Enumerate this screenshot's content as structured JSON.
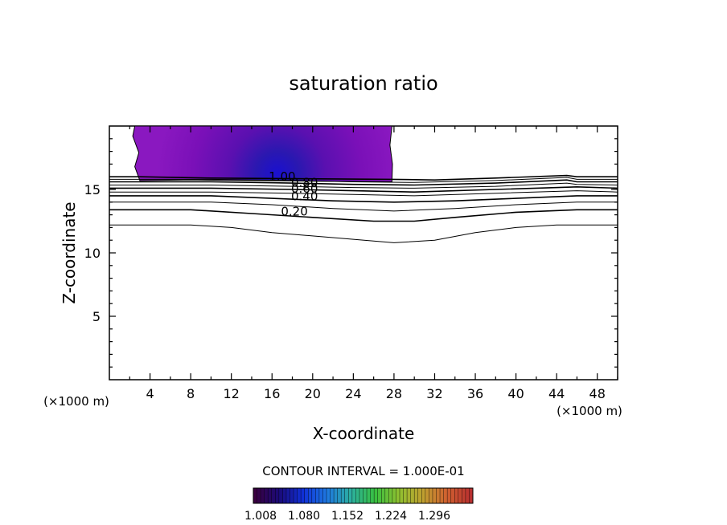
{
  "chart_data": {
    "type": "contour",
    "title": "saturation ratio",
    "xlabel": "X-coordinate",
    "ylabel": "Z-coordinate",
    "x_unit": "(×1000 m)",
    "z_unit": "(×1000 m)",
    "xlim": [
      0,
      50
    ],
    "ylim": [
      0,
      20
    ],
    "xticks": [
      4,
      8,
      12,
      16,
      20,
      24,
      28,
      32,
      36,
      40,
      44,
      48
    ],
    "yticks": [
      5,
      10,
      15
    ],
    "contour_interval_text": "CONTOUR INTERVAL = 1.000E-01",
    "filled_region": {
      "description": "supersaturated region, values above 1.0",
      "x_range": [
        2.4,
        27.8
      ],
      "z_range": [
        15.6,
        20
      ],
      "max_center": {
        "x": 18,
        "z": 16.2
      }
    },
    "contour_levels": [
      0.1,
      0.2,
      0.3,
      0.4,
      0.5,
      0.6,
      0.7,
      0.8,
      0.9,
      1.0
    ],
    "contour_labels": [
      "1.00",
      "0.80",
      "0.60",
      "0.40",
      "0.20"
    ],
    "contours": [
      {
        "level": 0.1,
        "points": [
          [
            0,
            12.2
          ],
          [
            8,
            12.2
          ],
          [
            12,
            12.0
          ],
          [
            16,
            11.6
          ],
          [
            22,
            11.2
          ],
          [
            28,
            10.8
          ],
          [
            32,
            11.0
          ],
          [
            36,
            11.6
          ],
          [
            40,
            12.0
          ],
          [
            44,
            12.2
          ],
          [
            50,
            12.2
          ]
        ]
      },
      {
        "level": 0.2,
        "points": [
          [
            0,
            13.4
          ],
          [
            8,
            13.4
          ],
          [
            14,
            13.1
          ],
          [
            20,
            12.8
          ],
          [
            26,
            12.5
          ],
          [
            30,
            12.5
          ],
          [
            34,
            12.8
          ],
          [
            40,
            13.2
          ],
          [
            46,
            13.4
          ],
          [
            50,
            13.4
          ]
        ]
      },
      {
        "level": 0.3,
        "points": [
          [
            0,
            14.0
          ],
          [
            10,
            14.0
          ],
          [
            16,
            13.8
          ],
          [
            22,
            13.5
          ],
          [
            28,
            13.3
          ],
          [
            34,
            13.5
          ],
          [
            40,
            13.8
          ],
          [
            46,
            14.0
          ],
          [
            50,
            14.0
          ]
        ]
      },
      {
        "level": 0.4,
        "points": [
          [
            0,
            14.5
          ],
          [
            10,
            14.5
          ],
          [
            16,
            14.3
          ],
          [
            22,
            14.1
          ],
          [
            28,
            14.0
          ],
          [
            34,
            14.1
          ],
          [
            40,
            14.3
          ],
          [
            46,
            14.5
          ],
          [
            50,
            14.5
          ]
        ]
      },
      {
        "level": 0.5,
        "points": [
          [
            0,
            14.8
          ],
          [
            10,
            14.8
          ],
          [
            18,
            14.7
          ],
          [
            24,
            14.6
          ],
          [
            30,
            14.5
          ],
          [
            38,
            14.7
          ],
          [
            46,
            14.9
          ],
          [
            50,
            14.8
          ]
        ]
      },
      {
        "level": 0.6,
        "points": [
          [
            0,
            15.1
          ],
          [
            10,
            15.1
          ],
          [
            18,
            15.0
          ],
          [
            24,
            14.9
          ],
          [
            30,
            14.8
          ],
          [
            38,
            15.0
          ],
          [
            46,
            15.2
          ],
          [
            50,
            15.1
          ]
        ]
      },
      {
        "level": 0.7,
        "points": [
          [
            0,
            15.35
          ],
          [
            10,
            15.35
          ],
          [
            18,
            15.25
          ],
          [
            24,
            15.15
          ],
          [
            30,
            15.1
          ],
          [
            38,
            15.25
          ],
          [
            45,
            15.5
          ],
          [
            46,
            15.4
          ],
          [
            50,
            15.35
          ]
        ]
      },
      {
        "level": 0.8,
        "points": [
          [
            0,
            15.6
          ],
          [
            10,
            15.6
          ],
          [
            18,
            15.5
          ],
          [
            24,
            15.4
          ],
          [
            30,
            15.35
          ],
          [
            38,
            15.5
          ],
          [
            45,
            15.75
          ],
          [
            46,
            15.6
          ],
          [
            50,
            15.6
          ]
        ]
      },
      {
        "level": 0.9,
        "points": [
          [
            0,
            15.8
          ],
          [
            10,
            15.8
          ],
          [
            18,
            15.7
          ],
          [
            24,
            15.6
          ],
          [
            30,
            15.55
          ],
          [
            38,
            15.7
          ],
          [
            45,
            15.95
          ],
          [
            46,
            15.8
          ],
          [
            50,
            15.8
          ]
        ]
      },
      {
        "level": 1.0,
        "points": [
          [
            0,
            16.0
          ],
          [
            3,
            16.0
          ],
          [
            10,
            15.9
          ],
          [
            18,
            15.85
          ],
          [
            27.8,
            15.8
          ],
          [
            32,
            15.75
          ],
          [
            38,
            15.9
          ],
          [
            45,
            16.1
          ],
          [
            46,
            16.0
          ],
          [
            50,
            16.0
          ]
        ]
      }
    ],
    "colorbar": {
      "labels": [
        "1.008",
        "1.080",
        "1.152",
        "1.224",
        "1.296"
      ],
      "colors": [
        "#3a0040",
        "#1a0a78",
        "#1030d8",
        "#1e78e0",
        "#2cb0a0",
        "#38c040",
        "#90c030",
        "#c0a030",
        "#d06030",
        "#b83030"
      ]
    }
  }
}
